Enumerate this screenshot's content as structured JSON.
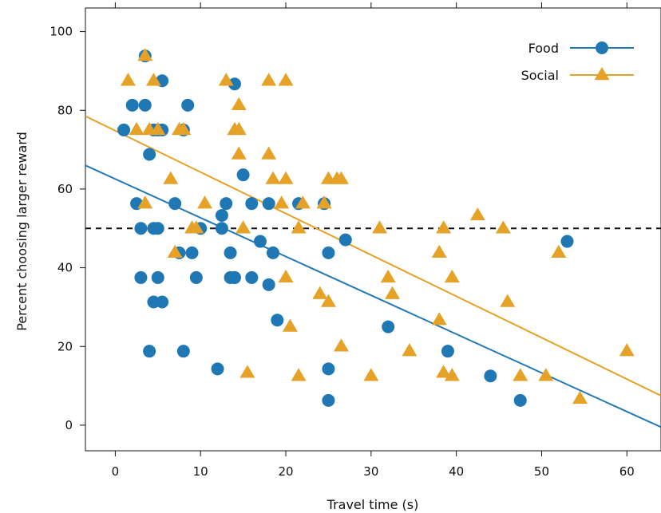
{
  "chart_data": {
    "type": "scatter",
    "xlabel": "Travel time (s)",
    "ylabel": "Percent choosing larger reward",
    "xlim": [
      -3.5,
      64
    ],
    "ylim": [
      -6.5,
      106
    ],
    "xticks": [
      0,
      10,
      20,
      30,
      40,
      50,
      60
    ],
    "yticks": [
      0,
      20,
      40,
      60,
      80,
      100
    ],
    "reference_line": {
      "y": 50,
      "style": "dashed",
      "color": "#111111"
    },
    "legend": {
      "position": "top-right"
    },
    "series": [
      {
        "name": "Food",
        "marker": "circle",
        "color": "#1f78b4",
        "fit_line": {
          "x": [
            -3.5,
            64
          ],
          "y": [
            66,
            -0.5
          ]
        },
        "x": [
          1,
          2,
          2.5,
          3,
          3,
          3.5,
          3.5,
          4,
          4,
          4.5,
          4.5,
          4.5,
          5,
          5,
          5,
          5.5,
          5.5,
          5.5,
          7,
          7.5,
          8,
          8,
          8.5,
          9,
          9.5,
          10,
          12,
          12.5,
          12.5,
          13,
          13.5,
          13.5,
          14,
          14,
          14,
          15,
          16,
          16,
          17,
          18,
          18,
          18.5,
          19,
          21.5,
          24.5,
          25,
          25,
          25,
          27,
          32,
          39,
          44,
          47.5,
          53
        ],
        "y": [
          75,
          81.3,
          56.3,
          50,
          37.5,
          93.8,
          81.3,
          68.8,
          18.8,
          75,
          50,
          31.3,
          75,
          50,
          37.5,
          87.5,
          75,
          31.3,
          56.3,
          43.8,
          75,
          18.8,
          81.3,
          43.8,
          37.5,
          50,
          14.3,
          53.3,
          50,
          56.3,
          43.8,
          37.5,
          86.7,
          37.5,
          37.5,
          63.6,
          56.3,
          37.5,
          46.7,
          56.3,
          35.7,
          43.8,
          26.7,
          56.3,
          56.3,
          43.8,
          14.3,
          6.3,
          47.1,
          25,
          18.8,
          12.5,
          6.3,
          46.7
        ]
      },
      {
        "name": "Social",
        "marker": "triangle",
        "color": "#e5a227",
        "fit_line": {
          "x": [
            -3.5,
            64
          ],
          "y": [
            78.5,
            7.5
          ]
        },
        "x": [
          1.5,
          2.5,
          3.5,
          3.5,
          4,
          4.5,
          5,
          6.5,
          7,
          7.5,
          8,
          9,
          9.5,
          10.5,
          13,
          14,
          14.5,
          14.5,
          14.5,
          15,
          15.5,
          18,
          18,
          18.5,
          19.5,
          20,
          20,
          20,
          20.5,
          21.5,
          21.5,
          22,
          24,
          24.5,
          25,
          25,
          26,
          26.5,
          26.5,
          30,
          31,
          32,
          32.5,
          34.5,
          38,
          38,
          38.5,
          38.5,
          39.5,
          39.5,
          42.5,
          45.5,
          46,
          47.5,
          50.5,
          52,
          54.5,
          60
        ],
        "y": [
          87.5,
          75,
          93.8,
          56.3,
          75,
          87.5,
          75,
          62.5,
          43.8,
          75,
          75,
          50,
          50,
          56.3,
          87.5,
          75,
          81.3,
          68.8,
          75,
          50,
          13.3,
          87.5,
          68.8,
          62.5,
          56.3,
          87.5,
          62.5,
          37.5,
          25,
          50,
          12.5,
          56.3,
          33.3,
          56.3,
          62.5,
          31.3,
          62.5,
          20,
          62.5,
          12.5,
          50,
          37.5,
          33.3,
          18.8,
          43.8,
          26.7,
          50,
          13.3,
          37.5,
          12.5,
          53.3,
          50,
          31.3,
          12.5,
          12.5,
          43.8,
          6.7,
          18.8
        ]
      }
    ]
  }
}
